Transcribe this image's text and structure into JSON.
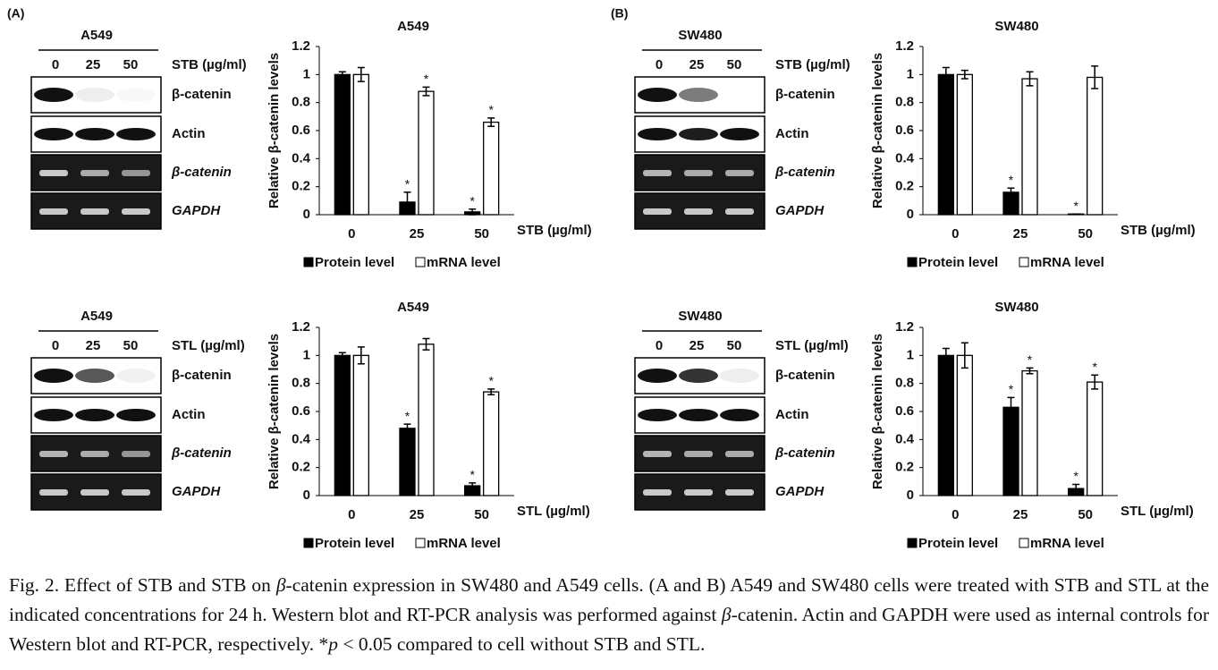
{
  "panels": [
    "(A)",
    "(B)"
  ],
  "blots": [
    {
      "cell_line": "A549",
      "doses": [
        "0",
        "25",
        "50"
      ],
      "treatment": "STB (µg/ml)",
      "rows": [
        {
          "label": "β-catenin",
          "italic": false,
          "gel": false
        },
        {
          "label": "Actin",
          "italic": false,
          "gel": false
        },
        {
          "label": "β-catenin",
          "italic": true,
          "gel": true
        },
        {
          "label": "GAPDH",
          "italic": true,
          "gel": true
        }
      ]
    },
    {
      "cell_line": "A549",
      "doses": [
        "0",
        "25",
        "50"
      ],
      "treatment": "STL (µg/ml)",
      "rows": [
        {
          "label": "β-catenin",
          "italic": false,
          "gel": false
        },
        {
          "label": "Actin",
          "italic": false,
          "gel": false
        },
        {
          "label": "β-catenin",
          "italic": true,
          "gel": true
        },
        {
          "label": "GAPDH",
          "italic": true,
          "gel": true
        }
      ]
    },
    {
      "cell_line": "SW480",
      "doses": [
        "0",
        "25",
        "50"
      ],
      "treatment": "STB (µg/ml)",
      "rows": [
        {
          "label": "β-catenin",
          "italic": false,
          "gel": false
        },
        {
          "label": "Actin",
          "italic": false,
          "gel": false
        },
        {
          "label": "β-catenin",
          "italic": true,
          "gel": true
        },
        {
          "label": "GAPDH",
          "italic": true,
          "gel": true
        }
      ]
    },
    {
      "cell_line": "SW480",
      "doses": [
        "0",
        "25",
        "50"
      ],
      "treatment": "STL (µg/ml)",
      "rows": [
        {
          "label": "β-catenin",
          "italic": false,
          "gel": false
        },
        {
          "label": "Actin",
          "italic": false,
          "gel": false
        },
        {
          "label": "β-catenin",
          "italic": true,
          "gel": true
        },
        {
          "label": "GAPDH",
          "italic": true,
          "gel": true
        }
      ]
    }
  ],
  "chart_data": [
    {
      "type": "bar",
      "title": "A549",
      "y_label": "Relative β-catenin levels",
      "x_label": "STB (µg/ml)",
      "significance_marker": "*",
      "categories": [
        "0",
        "25",
        "50"
      ],
      "ylim": [
        0,
        1.2
      ],
      "yticks": [
        0,
        0.2,
        0.4,
        0.6,
        0.8,
        1,
        1.2
      ],
      "series": [
        {
          "name": "Protein level",
          "color": "#000000",
          "values": [
            1,
            0.09,
            0.02
          ],
          "errors": [
            0.02,
            0.07,
            0.02
          ],
          "significant": [
            false,
            true,
            true
          ]
        },
        {
          "name": "mRNA level",
          "color": "#ffffff",
          "values": [
            1,
            0.88,
            0.66
          ],
          "errors": [
            0.05,
            0.03,
            0.03
          ],
          "significant": [
            false,
            true,
            true
          ]
        }
      ]
    },
    {
      "type": "bar",
      "title": "A549",
      "y_label": "Relative β-catenin levels",
      "x_label": "STL (µg/ml)",
      "significance_marker": "*",
      "categories": [
        "0",
        "25",
        "50"
      ],
      "ylim": [
        0,
        1.2
      ],
      "yticks": [
        0,
        0.2,
        0.4,
        0.6,
        0.8,
        1,
        1.2
      ],
      "series": [
        {
          "name": "Protein level",
          "color": "#000000",
          "values": [
            1,
            0.48,
            0.07
          ],
          "errors": [
            0.02,
            0.03,
            0.02
          ],
          "significant": [
            false,
            true,
            true
          ]
        },
        {
          "name": "mRNA level",
          "color": "#ffffff",
          "values": [
            1,
            1.08,
            0.74
          ],
          "errors": [
            0.06,
            0.04,
            0.02
          ],
          "significant": [
            false,
            false,
            true
          ]
        }
      ]
    },
    {
      "type": "bar",
      "title": "SW480",
      "y_label": "Relative β-catenin levels",
      "x_label": "STB (µg/ml)",
      "significance_marker": "*",
      "categories": [
        "0",
        "25",
        "50"
      ],
      "ylim": [
        0,
        1.2
      ],
      "yticks": [
        0,
        0.2,
        0.4,
        0.6,
        0.8,
        1,
        1.2
      ],
      "series": [
        {
          "name": "Protein level",
          "color": "#000000",
          "values": [
            1,
            0.16,
            0.005
          ],
          "errors": [
            0.05,
            0.03,
            0
          ],
          "significant": [
            false,
            true,
            true
          ]
        },
        {
          "name": "mRNA level",
          "color": "#ffffff",
          "values": [
            1,
            0.97,
            0.98
          ],
          "errors": [
            0.03,
            0.05,
            0.08
          ],
          "significant": [
            false,
            false,
            false
          ]
        }
      ]
    },
    {
      "type": "bar",
      "title": "SW480",
      "y_label": "Relative β-catenin levels",
      "x_label": "STL (µg/ml)",
      "significance_marker": "*",
      "categories": [
        "0",
        "25",
        "50"
      ],
      "ylim": [
        0,
        1.2
      ],
      "yticks": [
        0,
        0.2,
        0.4,
        0.6,
        0.8,
        1,
        1.2
      ],
      "series": [
        {
          "name": "Protein level",
          "color": "#000000",
          "values": [
            1,
            0.63,
            0.05
          ],
          "errors": [
            0.05,
            0.07,
            0.03
          ],
          "significant": [
            false,
            true,
            true
          ]
        },
        {
          "name": "mRNA level",
          "color": "#ffffff",
          "values": [
            1,
            0.89,
            0.81
          ],
          "errors": [
            0.09,
            0.02,
            0.05
          ],
          "significant": [
            false,
            true,
            true
          ]
        }
      ]
    }
  ],
  "caption": [
    {
      "text": "Fig. 2. Effect of STB and STB on ",
      "italic": false
    },
    {
      "text": "β",
      "italic": true
    },
    {
      "text": "-catenin expression in SW480 and A549 cells. (A and B) A549 and SW480 cells were treated with STB and STL at the indicated concentrations for 24 h. Western blot and RT-PCR analysis was performed against ",
      "italic": false
    },
    {
      "text": "β",
      "italic": true
    },
    {
      "text": "-catenin. Actin and GAPDH were used as internal controls for Western blot and RT-PCR, respectively. *",
      "italic": false
    },
    {
      "text": "p",
      "italic": true
    },
    {
      "text": " < 0.05 compared to cell without STB and STL.",
      "italic": false
    }
  ]
}
